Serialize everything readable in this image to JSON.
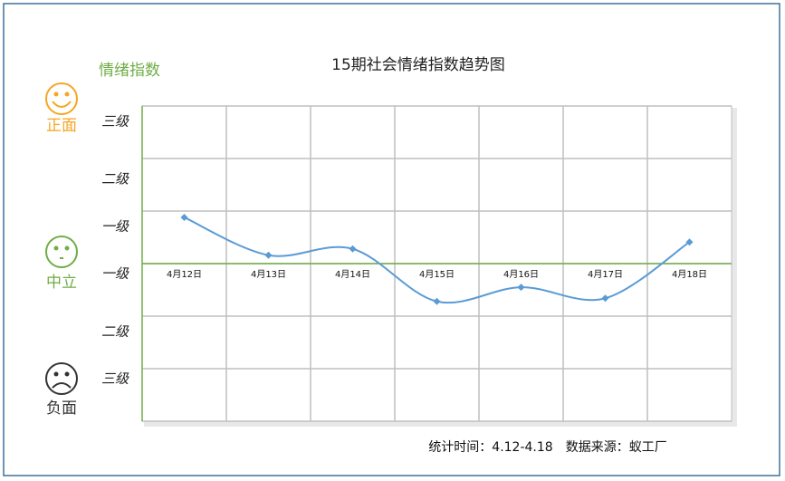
{
  "chart_data": {
    "type": "line",
    "title": "15期社会情绪指数趋势图",
    "y_label": "情绪指数",
    "categories": [
      "4月12日",
      "4月13日",
      "4月14日",
      "4月15日",
      "4月16日",
      "4月17日",
      "4月18日"
    ],
    "series": [
      {
        "name": "情绪指数",
        "color": "#5b9bd5",
        "values": [
          0.88,
          0.16,
          0.28,
          -0.72,
          -0.45,
          -0.66,
          0.41
        ]
      }
    ],
    "ylim": [
      -3,
      3
    ],
    "yticks": [
      {
        "value": 2.7,
        "label": "三级"
      },
      {
        "value": 1.6,
        "label": "二级"
      },
      {
        "value": 0.7,
        "label": "一级"
      },
      {
        "value": -0.2,
        "label": "一级"
      },
      {
        "value": -1.3,
        "label": "二级"
      },
      {
        "value": -2.2,
        "label": "三级"
      }
    ],
    "grid": true,
    "annotations": [
      {
        "text": "正面",
        "color": "#f5a623"
      },
      {
        "text": "中立",
        "color": "#70ad47"
      },
      {
        "text": "负面",
        "color": "#333333"
      }
    ],
    "footer": "统计时间：4.12-4.18　数据来源：蚁工厂"
  }
}
